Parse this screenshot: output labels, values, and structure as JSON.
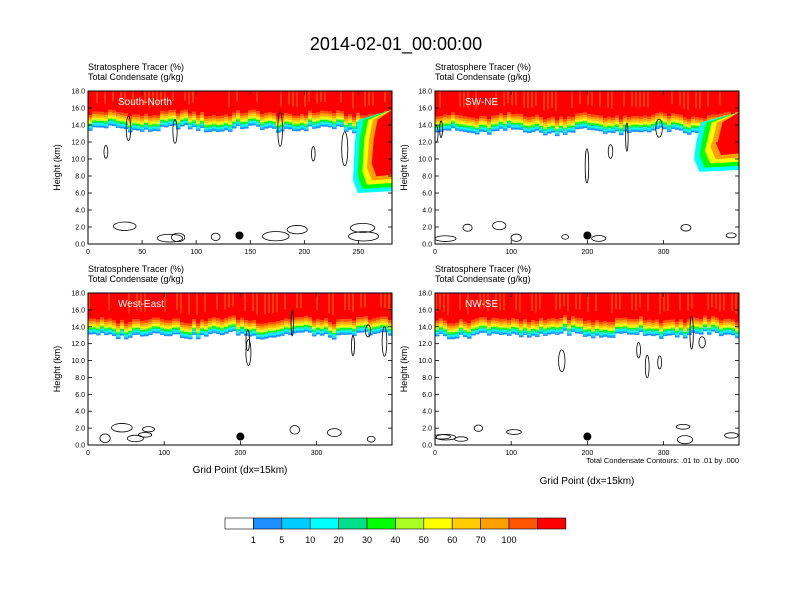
{
  "figure": {
    "title": "2014-02-01_00:00:00",
    "contour_note": "Total Condensate Contours: .01 to .01 by .000",
    "grid_xlabel": "Grid Point (dx=15km)"
  },
  "colorbar": {
    "colors": [
      "#ffffff",
      "#1e8fff",
      "#00ccff",
      "#00ffff",
      "#00e08a",
      "#00ff00",
      "#aaff22",
      "#ffff00",
      "#ffcc00",
      "#ffa000",
      "#ff5500",
      "#ff0000"
    ],
    "labels": [
      "1",
      "5",
      "10",
      "20",
      "30",
      "40",
      "50",
      "60",
      "70",
      "100"
    ]
  },
  "chart_data": [
    {
      "type": "heatmap",
      "subtitle_line1": "Stratosphere Tracer   (%)",
      "subtitle_line2": "Total Condensate   (g/kg)",
      "panel_label": "South-North",
      "ylabel": "Height (km)",
      "xlabel": "",
      "xlim": [
        0,
        281
      ],
      "ylim": [
        0,
        18
      ],
      "xticks": [
        0,
        50,
        100,
        150,
        200,
        250
      ],
      "yticks": [
        0,
        2,
        4,
        6,
        8,
        10,
        12,
        14,
        16,
        18
      ],
      "tropopause_km": 15.8,
      "marker": {
        "x": 140,
        "y": 1.0
      },
      "intrusion": {
        "x_start": 245,
        "x_end": 281,
        "bottom_km": 6.0
      }
    },
    {
      "type": "heatmap",
      "subtitle_line1": "Stratosphere Tracer   (%)",
      "subtitle_line2": "Total Condensate   (g/kg)",
      "panel_label": "SW-NE",
      "ylabel": "Height (km)",
      "xlabel": "",
      "xlim": [
        0,
        399
      ],
      "ylim": [
        0,
        18
      ],
      "xticks": [
        0,
        100,
        200,
        300
      ],
      "yticks": [
        0,
        2,
        4,
        6,
        8,
        10,
        12,
        14,
        16,
        18
      ],
      "tropopause_km": 15.5,
      "marker": {
        "x": 200,
        "y": 1.0
      },
      "intrusion": {
        "x_start": 340,
        "x_end": 399,
        "bottom_km": 8.5
      }
    },
    {
      "type": "heatmap",
      "subtitle_line1": "Stratosphere Tracer   (%)",
      "subtitle_line2": "Total Condensate   (g/kg)",
      "panel_label": "West-East",
      "ylabel": "Height (km)",
      "xlabel": "Grid Point (dx=15km)",
      "xlim": [
        0,
        399
      ],
      "ylim": [
        0,
        18
      ],
      "xticks": [
        0,
        100,
        200,
        300
      ],
      "yticks": [
        0,
        2,
        4,
        6,
        8,
        10,
        12,
        14,
        16,
        18
      ],
      "tropopause_km": 15.3,
      "marker": {
        "x": 200,
        "y": 1.0
      },
      "intrusion": null
    },
    {
      "type": "heatmap",
      "subtitle_line1": "Stratosphere Tracer   (%)",
      "subtitle_line2": "Total Condensate   (g/kg)",
      "panel_label": "NW-SE",
      "ylabel": "Height (km)",
      "xlabel": "Grid Point (dx=15km)",
      "xlim": [
        0,
        399
      ],
      "ylim": [
        0,
        18
      ],
      "xticks": [
        0,
        100,
        200,
        300
      ],
      "yticks": [
        0,
        2,
        4,
        6,
        8,
        10,
        12,
        14,
        16,
        18
      ],
      "tropopause_km": 15.3,
      "marker": {
        "x": 200,
        "y": 1.0
      },
      "intrusion": null
    }
  ]
}
